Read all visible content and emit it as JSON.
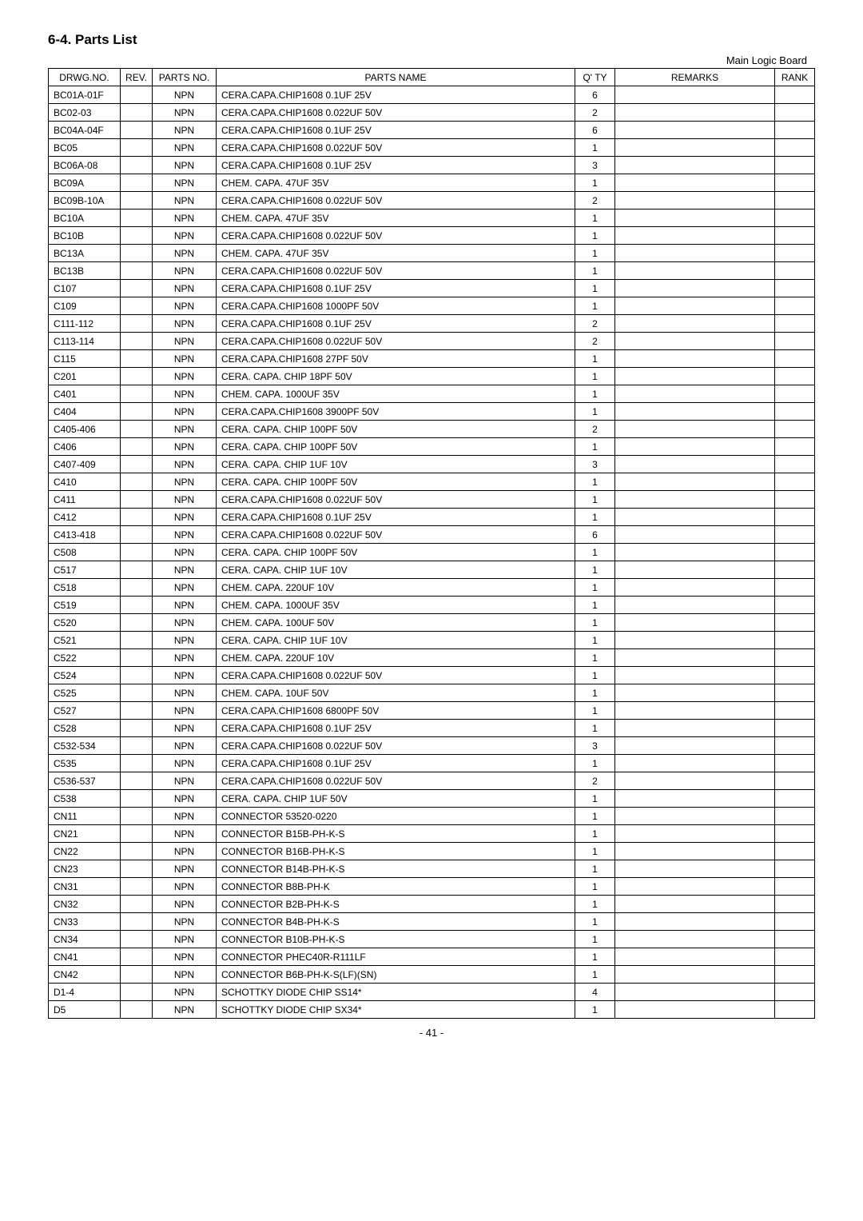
{
  "section_title": "6-4.  Parts List",
  "board_label": "Main Logic Board",
  "page_number": "- 41 -",
  "headers": {
    "drwg": "DRWG.NO.",
    "rev": "REV.",
    "parts": "PARTS NO.",
    "name": "PARTS NAME",
    "qty": "Q' TY",
    "remarks": "REMARKS",
    "rank": "RANK"
  },
  "rows": [
    {
      "drwg": "BC01A-01F",
      "rev": "",
      "parts": "NPN",
      "name": "CERA.CAPA.CHIP1608  0.1UF 25V",
      "qty": "6",
      "remarks": "",
      "rank": ""
    },
    {
      "drwg": "BC02-03",
      "rev": "",
      "parts": "NPN",
      "name": "CERA.CAPA.CHIP1608 0.022UF 50V",
      "qty": "2",
      "remarks": "",
      "rank": ""
    },
    {
      "drwg": "BC04A-04F",
      "rev": "",
      "parts": "NPN",
      "name": "CERA.CAPA.CHIP1608  0.1UF 25V",
      "qty": "6",
      "remarks": "",
      "rank": ""
    },
    {
      "drwg": "BC05",
      "rev": "",
      "parts": "NPN",
      "name": "CERA.CAPA.CHIP1608 0.022UF 50V",
      "qty": "1",
      "remarks": "",
      "rank": ""
    },
    {
      "drwg": "BC06A-08",
      "rev": "",
      "parts": "NPN",
      "name": "CERA.CAPA.CHIP1608  0.1UF 25V",
      "qty": "3",
      "remarks": "",
      "rank": ""
    },
    {
      "drwg": "BC09A",
      "rev": "",
      "parts": "NPN",
      "name": "CHEM. CAPA.   47UF  35V",
      "qty": "1",
      "remarks": "",
      "rank": ""
    },
    {
      "drwg": "BC09B-10A",
      "rev": "",
      "parts": "NPN",
      "name": "CERA.CAPA.CHIP1608 0.022UF 50V",
      "qty": "2",
      "remarks": "",
      "rank": ""
    },
    {
      "drwg": "BC10A",
      "rev": "",
      "parts": "NPN",
      "name": "CHEM. CAPA.   47UF  35V",
      "qty": "1",
      "remarks": "",
      "rank": ""
    },
    {
      "drwg": "BC10B",
      "rev": "",
      "parts": "NPN",
      "name": "CERA.CAPA.CHIP1608 0.022UF 50V",
      "qty": "1",
      "remarks": "",
      "rank": ""
    },
    {
      "drwg": "BC13A",
      "rev": "",
      "parts": "NPN",
      "name": "CHEM. CAPA.   47UF  35V",
      "qty": "1",
      "remarks": "",
      "rank": ""
    },
    {
      "drwg": "BC13B",
      "rev": "",
      "parts": "NPN",
      "name": "CERA.CAPA.CHIP1608 0.022UF 50V",
      "qty": "1",
      "remarks": "",
      "rank": ""
    },
    {
      "drwg": "C107",
      "rev": "",
      "parts": "NPN",
      "name": "CERA.CAPA.CHIP1608  0.1UF 25V",
      "qty": "1",
      "remarks": "",
      "rank": ""
    },
    {
      "drwg": "C109",
      "rev": "",
      "parts": "NPN",
      "name": "CERA.CAPA.CHIP1608 1000PF 50V",
      "qty": "1",
      "remarks": "",
      "rank": ""
    },
    {
      "drwg": "C111-112",
      "rev": "",
      "parts": "NPN",
      "name": "CERA.CAPA.CHIP1608  0.1UF 25V",
      "qty": "2",
      "remarks": "",
      "rank": ""
    },
    {
      "drwg": "C113-114",
      "rev": "",
      "parts": "NPN",
      "name": "CERA.CAPA.CHIP1608 0.022UF 50V",
      "qty": "2",
      "remarks": "",
      "rank": ""
    },
    {
      "drwg": "C115",
      "rev": "",
      "parts": "NPN",
      "name": "CERA.CAPA.CHIP1608 27PF 50V",
      "qty": "1",
      "remarks": "",
      "rank": ""
    },
    {
      "drwg": "C201",
      "rev": "",
      "parts": "NPN",
      "name": "CERA. CAPA. CHIP   18PF 50V",
      "qty": "1",
      "remarks": "",
      "rank": ""
    },
    {
      "drwg": "C401",
      "rev": "",
      "parts": "NPN",
      "name": "CHEM. CAPA. 1000UF  35V",
      "qty": "1",
      "remarks": "",
      "rank": ""
    },
    {
      "drwg": "C404",
      "rev": "",
      "parts": "NPN",
      "name": "CERA.CAPA.CHIP1608 3900PF 50V",
      "qty": "1",
      "remarks": "",
      "rank": ""
    },
    {
      "drwg": "C405-406",
      "rev": "",
      "parts": "NPN",
      "name": "CERA. CAPA. CHIP  100PF 50V",
      "qty": "2",
      "remarks": "",
      "rank": ""
    },
    {
      "drwg": "C406",
      "rev": "",
      "parts": "NPN",
      "name": "CERA. CAPA. CHIP  100PF 50V",
      "qty": "1",
      "remarks": "",
      "rank": ""
    },
    {
      "drwg": "C407-409",
      "rev": "",
      "parts": "NPN",
      "name": "CERA. CAPA. CHIP    1UF 10V",
      "qty": "3",
      "remarks": "",
      "rank": ""
    },
    {
      "drwg": "C410",
      "rev": "",
      "parts": "NPN",
      "name": "CERA. CAPA. CHIP  100PF 50V",
      "qty": "1",
      "remarks": "",
      "rank": ""
    },
    {
      "drwg": "C411",
      "rev": "",
      "parts": "NPN",
      "name": "CERA.CAPA.CHIP1608 0.022UF 50V",
      "qty": "1",
      "remarks": "",
      "rank": ""
    },
    {
      "drwg": "C412",
      "rev": "",
      "parts": "NPN",
      "name": "CERA.CAPA.CHIP1608  0.1UF 25V",
      "qty": "1",
      "remarks": "",
      "rank": ""
    },
    {
      "drwg": "C413-418",
      "rev": "",
      "parts": "NPN",
      "name": "CERA.CAPA.CHIP1608 0.022UF 50V",
      "qty": "6",
      "remarks": "",
      "rank": ""
    },
    {
      "drwg": "C508",
      "rev": "",
      "parts": "NPN",
      "name": "CERA. CAPA. CHIP  100PF 50V",
      "qty": "1",
      "remarks": "",
      "rank": ""
    },
    {
      "drwg": "C517",
      "rev": "",
      "parts": "NPN",
      "name": "CERA. CAPA. CHIP    1UF 10V",
      "qty": "1",
      "remarks": "",
      "rank": ""
    },
    {
      "drwg": "C518",
      "rev": "",
      "parts": "NPN",
      "name": "CHEM. CAPA.  220UF  10V",
      "qty": "1",
      "remarks": "",
      "rank": ""
    },
    {
      "drwg": "C519",
      "rev": "",
      "parts": "NPN",
      "name": "CHEM. CAPA. 1000UF  35V",
      "qty": "1",
      "remarks": "",
      "rank": ""
    },
    {
      "drwg": "C520",
      "rev": "",
      "parts": "NPN",
      "name": "CHEM. CAPA.  100UF  50V",
      "qty": "1",
      "remarks": "",
      "rank": ""
    },
    {
      "drwg": "C521",
      "rev": "",
      "parts": "NPN",
      "name": "CERA. CAPA. CHIP    1UF 10V",
      "qty": "1",
      "remarks": "",
      "rank": ""
    },
    {
      "drwg": "C522",
      "rev": "",
      "parts": "NPN",
      "name": "CHEM. CAPA.  220UF  10V",
      "qty": "1",
      "remarks": "",
      "rank": ""
    },
    {
      "drwg": "C524",
      "rev": "",
      "parts": "NPN",
      "name": "CERA.CAPA.CHIP1608 0.022UF 50V",
      "qty": "1",
      "remarks": "",
      "rank": ""
    },
    {
      "drwg": "C525",
      "rev": "",
      "parts": "NPN",
      "name": "CHEM. CAPA.   10UF  50V",
      "qty": "1",
      "remarks": "",
      "rank": ""
    },
    {
      "drwg": "C527",
      "rev": "",
      "parts": "NPN",
      "name": "CERA.CAPA.CHIP1608 6800PF  50V",
      "qty": "1",
      "remarks": "",
      "rank": ""
    },
    {
      "drwg": "C528",
      "rev": "",
      "parts": "NPN",
      "name": "CERA.CAPA.CHIP1608  0.1UF 25V",
      "qty": "1",
      "remarks": "",
      "rank": ""
    },
    {
      "drwg": "C532-534",
      "rev": "",
      "parts": "NPN",
      "name": "CERA.CAPA.CHIP1608 0.022UF 50V",
      "qty": "3",
      "remarks": "",
      "rank": ""
    },
    {
      "drwg": "C535",
      "rev": "",
      "parts": "NPN",
      "name": "CERA.CAPA.CHIP1608  0.1UF 25V",
      "qty": "1",
      "remarks": "",
      "rank": ""
    },
    {
      "drwg": "C536-537",
      "rev": "",
      "parts": "NPN",
      "name": "CERA.CAPA.CHIP1608 0.022UF 50V",
      "qty": "2",
      "remarks": "",
      "rank": ""
    },
    {
      "drwg": "C538",
      "rev": "",
      "parts": "NPN",
      "name": "CERA. CAPA. CHIP    1UF 50V",
      "qty": "1",
      "remarks": "",
      "rank": ""
    },
    {
      "drwg": "CN11",
      "rev": "",
      "parts": "NPN",
      "name": "CONNECTOR 53520-0220",
      "qty": "1",
      "remarks": "",
      "rank": ""
    },
    {
      "drwg": "CN21",
      "rev": "",
      "parts": "NPN",
      "name": "CONNECTOR B15B-PH-K-S",
      "qty": "1",
      "remarks": "",
      "rank": ""
    },
    {
      "drwg": "CN22",
      "rev": "",
      "parts": "NPN",
      "name": "CONNECTOR B16B-PH-K-S",
      "qty": "1",
      "remarks": "",
      "rank": ""
    },
    {
      "drwg": "CN23",
      "rev": "",
      "parts": "NPN",
      "name": "CONNECTOR B14B-PH-K-S",
      "qty": "1",
      "remarks": "",
      "rank": ""
    },
    {
      "drwg": "CN31",
      "rev": "",
      "parts": "NPN",
      "name": "CONNECTOR B8B-PH-K",
      "qty": "1",
      "remarks": "",
      "rank": ""
    },
    {
      "drwg": "CN32",
      "rev": "",
      "parts": "NPN",
      "name": "CONNECTOR B2B-PH-K-S",
      "qty": "1",
      "remarks": "",
      "rank": ""
    },
    {
      "drwg": "CN33",
      "rev": "",
      "parts": "NPN",
      "name": "CONNECTOR B4B-PH-K-S",
      "qty": "1",
      "remarks": "",
      "rank": ""
    },
    {
      "drwg": "CN34",
      "rev": "",
      "parts": "NPN",
      "name": "CONNECTOR B10B-PH-K-S",
      "qty": "1",
      "remarks": "",
      "rank": ""
    },
    {
      "drwg": "CN41",
      "rev": "",
      "parts": "NPN",
      "name": "CONNECTOR PHEC40R-R111LF",
      "qty": "1",
      "remarks": "",
      "rank": ""
    },
    {
      "drwg": "CN42",
      "rev": "",
      "parts": "NPN",
      "name": "CONNECTOR B6B-PH-K-S(LF)(SN)",
      "qty": "1",
      "remarks": "",
      "rank": ""
    },
    {
      "drwg": "D1-4",
      "rev": "",
      "parts": "NPN",
      "name": "SCHOTTKY DIODE CHIP SS14*",
      "qty": "4",
      "remarks": "",
      "rank": ""
    },
    {
      "drwg": "D5",
      "rev": "",
      "parts": "NPN",
      "name": "SCHOTTKY DIODE CHIP SX34*",
      "qty": "1",
      "remarks": "",
      "rank": ""
    }
  ]
}
